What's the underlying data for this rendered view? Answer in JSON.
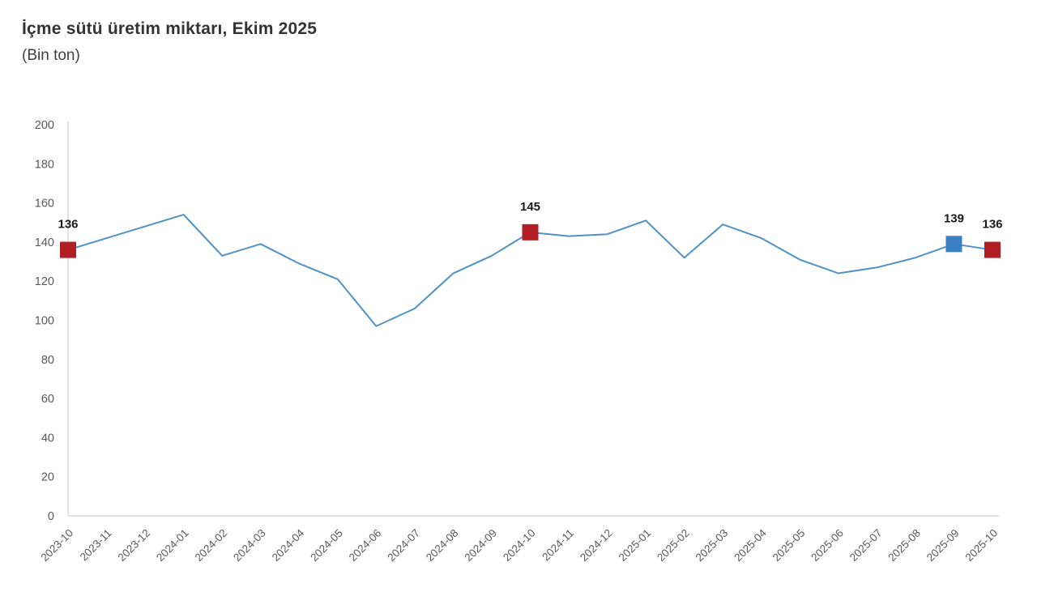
{
  "header": {
    "title": "İçme sütü üretim miktarı, Ekim 2025",
    "subtitle": "(Bin ton)"
  },
  "chart_data": {
    "type": "line",
    "title": "İçme sütü üretim miktarı, Ekim 2025",
    "subtitle": "(Bin ton)",
    "ylabel": "",
    "xlabel": "",
    "ylim": [
      0,
      200
    ],
    "ytick_step": 20,
    "grid": false,
    "legend": false,
    "categories": [
      "2023-10",
      "2023-11",
      "2023-12",
      "2024-01",
      "2024-02",
      "2024-03",
      "2024-04",
      "2024-05",
      "2024-06",
      "2024-07",
      "2024-08",
      "2024-09",
      "2024-10",
      "2024-11",
      "2024-12",
      "2025-01",
      "2025-02",
      "2025-03",
      "2025-04",
      "2025-05",
      "2025-06",
      "2025-07",
      "2025-08",
      "2025-09",
      "2025-10"
    ],
    "values": [
      136,
      142,
      148,
      154,
      133,
      139,
      129,
      121,
      97,
      106,
      124,
      133,
      145,
      143,
      144,
      151,
      132,
      149,
      142,
      131,
      124,
      127,
      132,
      139,
      136
    ],
    "annotated_points": [
      {
        "category": "2023-10",
        "value": 136,
        "label": "136",
        "marker_color": "#b01e24"
      },
      {
        "category": "2024-10",
        "value": 145,
        "label": "145",
        "marker_color": "#b01e24"
      },
      {
        "category": "2025-09",
        "value": 139,
        "label": "139",
        "marker_color": "#3b7fc4"
      },
      {
        "category": "2025-10",
        "value": 136,
        "label": "136",
        "marker_color": "#b01e24"
      }
    ],
    "colors": {
      "line": "#5091c6",
      "marker_red": "#b01e24",
      "marker_blue": "#3b7fc4",
      "axis": "#d9d9d9",
      "tick_label": "#595959",
      "data_label": "#1a1a1a"
    }
  }
}
